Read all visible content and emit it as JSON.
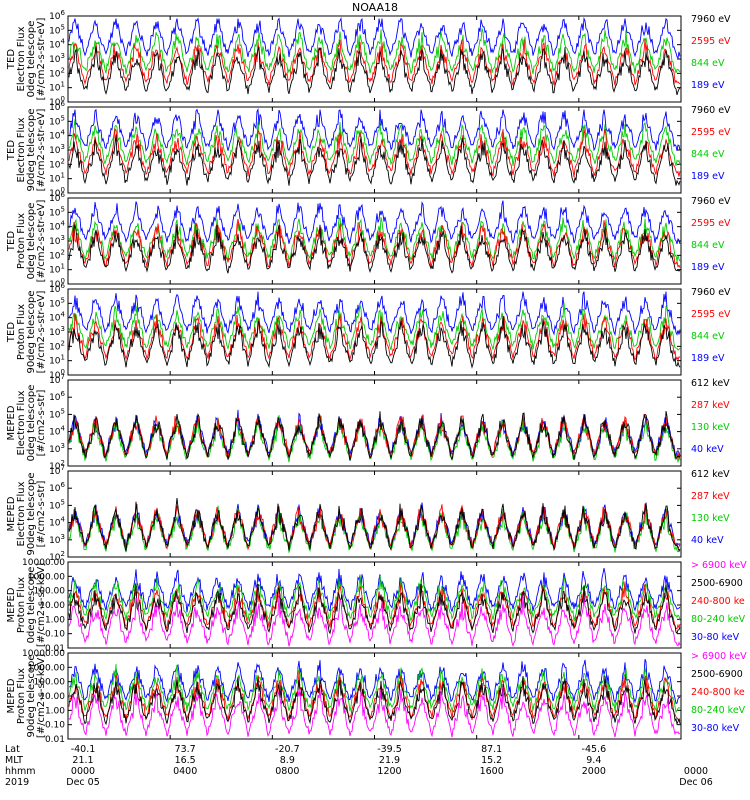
{
  "title": "NOAA18",
  "colors": {
    "black": "#000000",
    "blue": "#0000ff",
    "red": "#ff0000",
    "green": "#00cc00",
    "magenta": "#ff00ff"
  },
  "chart_data": [
    {
      "type": "line",
      "ylabel": [
        "TED",
        "Electron Flux",
        "0deg telescope",
        "[#/cm2-s-str-eV]"
      ],
      "yscale": "log",
      "ylim": [
        1,
        1000000
      ],
      "yticks": [
        "10^0",
        "10^1",
        "10^2",
        "10^3",
        "10^4",
        "10^5",
        "10^6"
      ],
      "series": [
        {
          "name": "7960 eV",
          "color": "#000000"
        },
        {
          "name": "2595 eV",
          "color": "#ff0000"
        },
        {
          "name": "844 eV",
          "color": "#00cc00"
        },
        {
          "name": "189 eV",
          "color": "#0000ff"
        }
      ]
    },
    {
      "type": "line",
      "ylabel": [
        "TED",
        "Electron Flux",
        "90deg telescope",
        "[#/cm2-s-str-eV]"
      ],
      "yscale": "log",
      "ylim": [
        1,
        1000000
      ],
      "yticks": [
        "10^0",
        "10^1",
        "10^2",
        "10^3",
        "10^4",
        "10^5",
        "10^6"
      ],
      "series": [
        {
          "name": "7960 eV",
          "color": "#000000"
        },
        {
          "name": "2595 eV",
          "color": "#ff0000"
        },
        {
          "name": "844 eV",
          "color": "#00cc00"
        },
        {
          "name": "189 eV",
          "color": "#0000ff"
        }
      ]
    },
    {
      "type": "line",
      "ylabel": [
        "TED",
        "Proton Flux",
        "0deg telescope",
        "[#/cm2-s-str-eV]"
      ],
      "yscale": "log",
      "ylim": [
        1,
        1000000
      ],
      "yticks": [
        "10^0",
        "10^1",
        "10^2",
        "10^3",
        "10^4",
        "10^5",
        "10^6"
      ],
      "series": [
        {
          "name": "7960 eV",
          "color": "#000000"
        },
        {
          "name": "2595 eV",
          "color": "#ff0000"
        },
        {
          "name": "844 eV",
          "color": "#00cc00"
        },
        {
          "name": "189 eV",
          "color": "#0000ff"
        }
      ]
    },
    {
      "type": "line",
      "ylabel": [
        "TED",
        "Proton Flux",
        "90deg telescope",
        "[#/cm2-s-str-eV]"
      ],
      "yscale": "log",
      "ylim": [
        1,
        1000000
      ],
      "yticks": [
        "10^0",
        "10^1",
        "10^2",
        "10^3",
        "10^4",
        "10^5",
        "10^6"
      ],
      "series": [
        {
          "name": "7960 eV",
          "color": "#000000"
        },
        {
          "name": "2595 eV",
          "color": "#ff0000"
        },
        {
          "name": "844 eV",
          "color": "#00cc00"
        },
        {
          "name": "189 eV",
          "color": "#0000ff"
        }
      ]
    },
    {
      "type": "line",
      "ylabel": [
        "MEPED",
        "Electron Flux",
        "0deg telescope",
        "[#/cm2-s-str]"
      ],
      "yscale": "log",
      "ylim": [
        100,
        10000000
      ],
      "yticks": [
        "10^2",
        "10^3",
        "10^4",
        "10^5",
        "10^6",
        "10^7"
      ],
      "series": [
        {
          "name": "612 keV",
          "color": "#000000"
        },
        {
          "name": "287 keV",
          "color": "#ff0000"
        },
        {
          "name": "130 keV",
          "color": "#00cc00"
        },
        {
          "name": "40 keV",
          "color": "#0000ff"
        }
      ]
    },
    {
      "type": "line",
      "ylabel": [
        "MEPED",
        "Electron Flux",
        "90deg telescope",
        "[#/cm2-s-str]"
      ],
      "yscale": "log",
      "ylim": [
        100,
        10000000
      ],
      "yticks": [
        "10^2",
        "10^3",
        "10^4",
        "10^5",
        "10^6",
        "10^7"
      ],
      "series": [
        {
          "name": "612 keV",
          "color": "#000000"
        },
        {
          "name": "287 keV",
          "color": "#ff0000"
        },
        {
          "name": "130 keV",
          "color": "#00cc00"
        },
        {
          "name": "40 keV",
          "color": "#0000ff"
        }
      ]
    },
    {
      "type": "line",
      "ylabel": [
        "MEPED",
        "Proton Flux",
        "0deg telescope",
        "[#/cm2-s-sr-keV]"
      ],
      "yscale": "log",
      "ylim": [
        0.01,
        10000
      ],
      "yticks": [
        "0.01",
        "0.10",
        "1.00",
        "10.00",
        "100.00",
        "1000.00",
        "10000.00"
      ],
      "series": [
        {
          "name": "> 6900 keV",
          "color": "#ff00ff"
        },
        {
          "name": "2500-6900",
          "color": "#000000"
        },
        {
          "name": "240-800 ke",
          "color": "#ff0000"
        },
        {
          "name": "80-240 keV",
          "color": "#00cc00"
        },
        {
          "name": "30-80 keV",
          "color": "#0000ff"
        }
      ]
    },
    {
      "type": "line",
      "ylabel": [
        "MEPED",
        "Proton Flux",
        "90deg telescope",
        "[#/cm2-s-sr-keV]"
      ],
      "yscale": "log",
      "ylim": [
        0.01,
        10000
      ],
      "yticks": [
        "0.01",
        "0.10",
        "1.00",
        "10.00",
        "100.00",
        "1000.00",
        "10000.00"
      ],
      "series": [
        {
          "name": "> 6900 keV",
          "color": "#ff00ff"
        },
        {
          "name": "2500-6900",
          "color": "#000000"
        },
        {
          "name": "240-800 ke",
          "color": "#ff0000"
        },
        {
          "name": "80-240 keV",
          "color": "#00cc00"
        },
        {
          "name": "30-80 keV",
          "color": "#0000ff"
        }
      ]
    }
  ],
  "xaxis": {
    "row_labels": [
      "Lat",
      "MLT",
      "hhmm",
      "2019"
    ],
    "ticks": [
      {
        "lat": "-40.1",
        "mlt": "21.1",
        "hhmm": "0000",
        "date": "Dec 05"
      },
      {
        "lat": "73.7",
        "mlt": "16.5",
        "hhmm": "0400",
        "date": ""
      },
      {
        "lat": "-20.7",
        "mlt": "8.9",
        "hhmm": "0800",
        "date": ""
      },
      {
        "lat": "-39.5",
        "mlt": "21.9",
        "hhmm": "1200",
        "date": ""
      },
      {
        "lat": "87.1",
        "mlt": "15.2",
        "hhmm": "1600",
        "date": ""
      },
      {
        "lat": "-45.6",
        "mlt": "9.4",
        "hhmm": "2000",
        "date": ""
      },
      {
        "lat": "",
        "mlt": "",
        "hhmm": "0000",
        "date": "Dec 06"
      }
    ]
  }
}
